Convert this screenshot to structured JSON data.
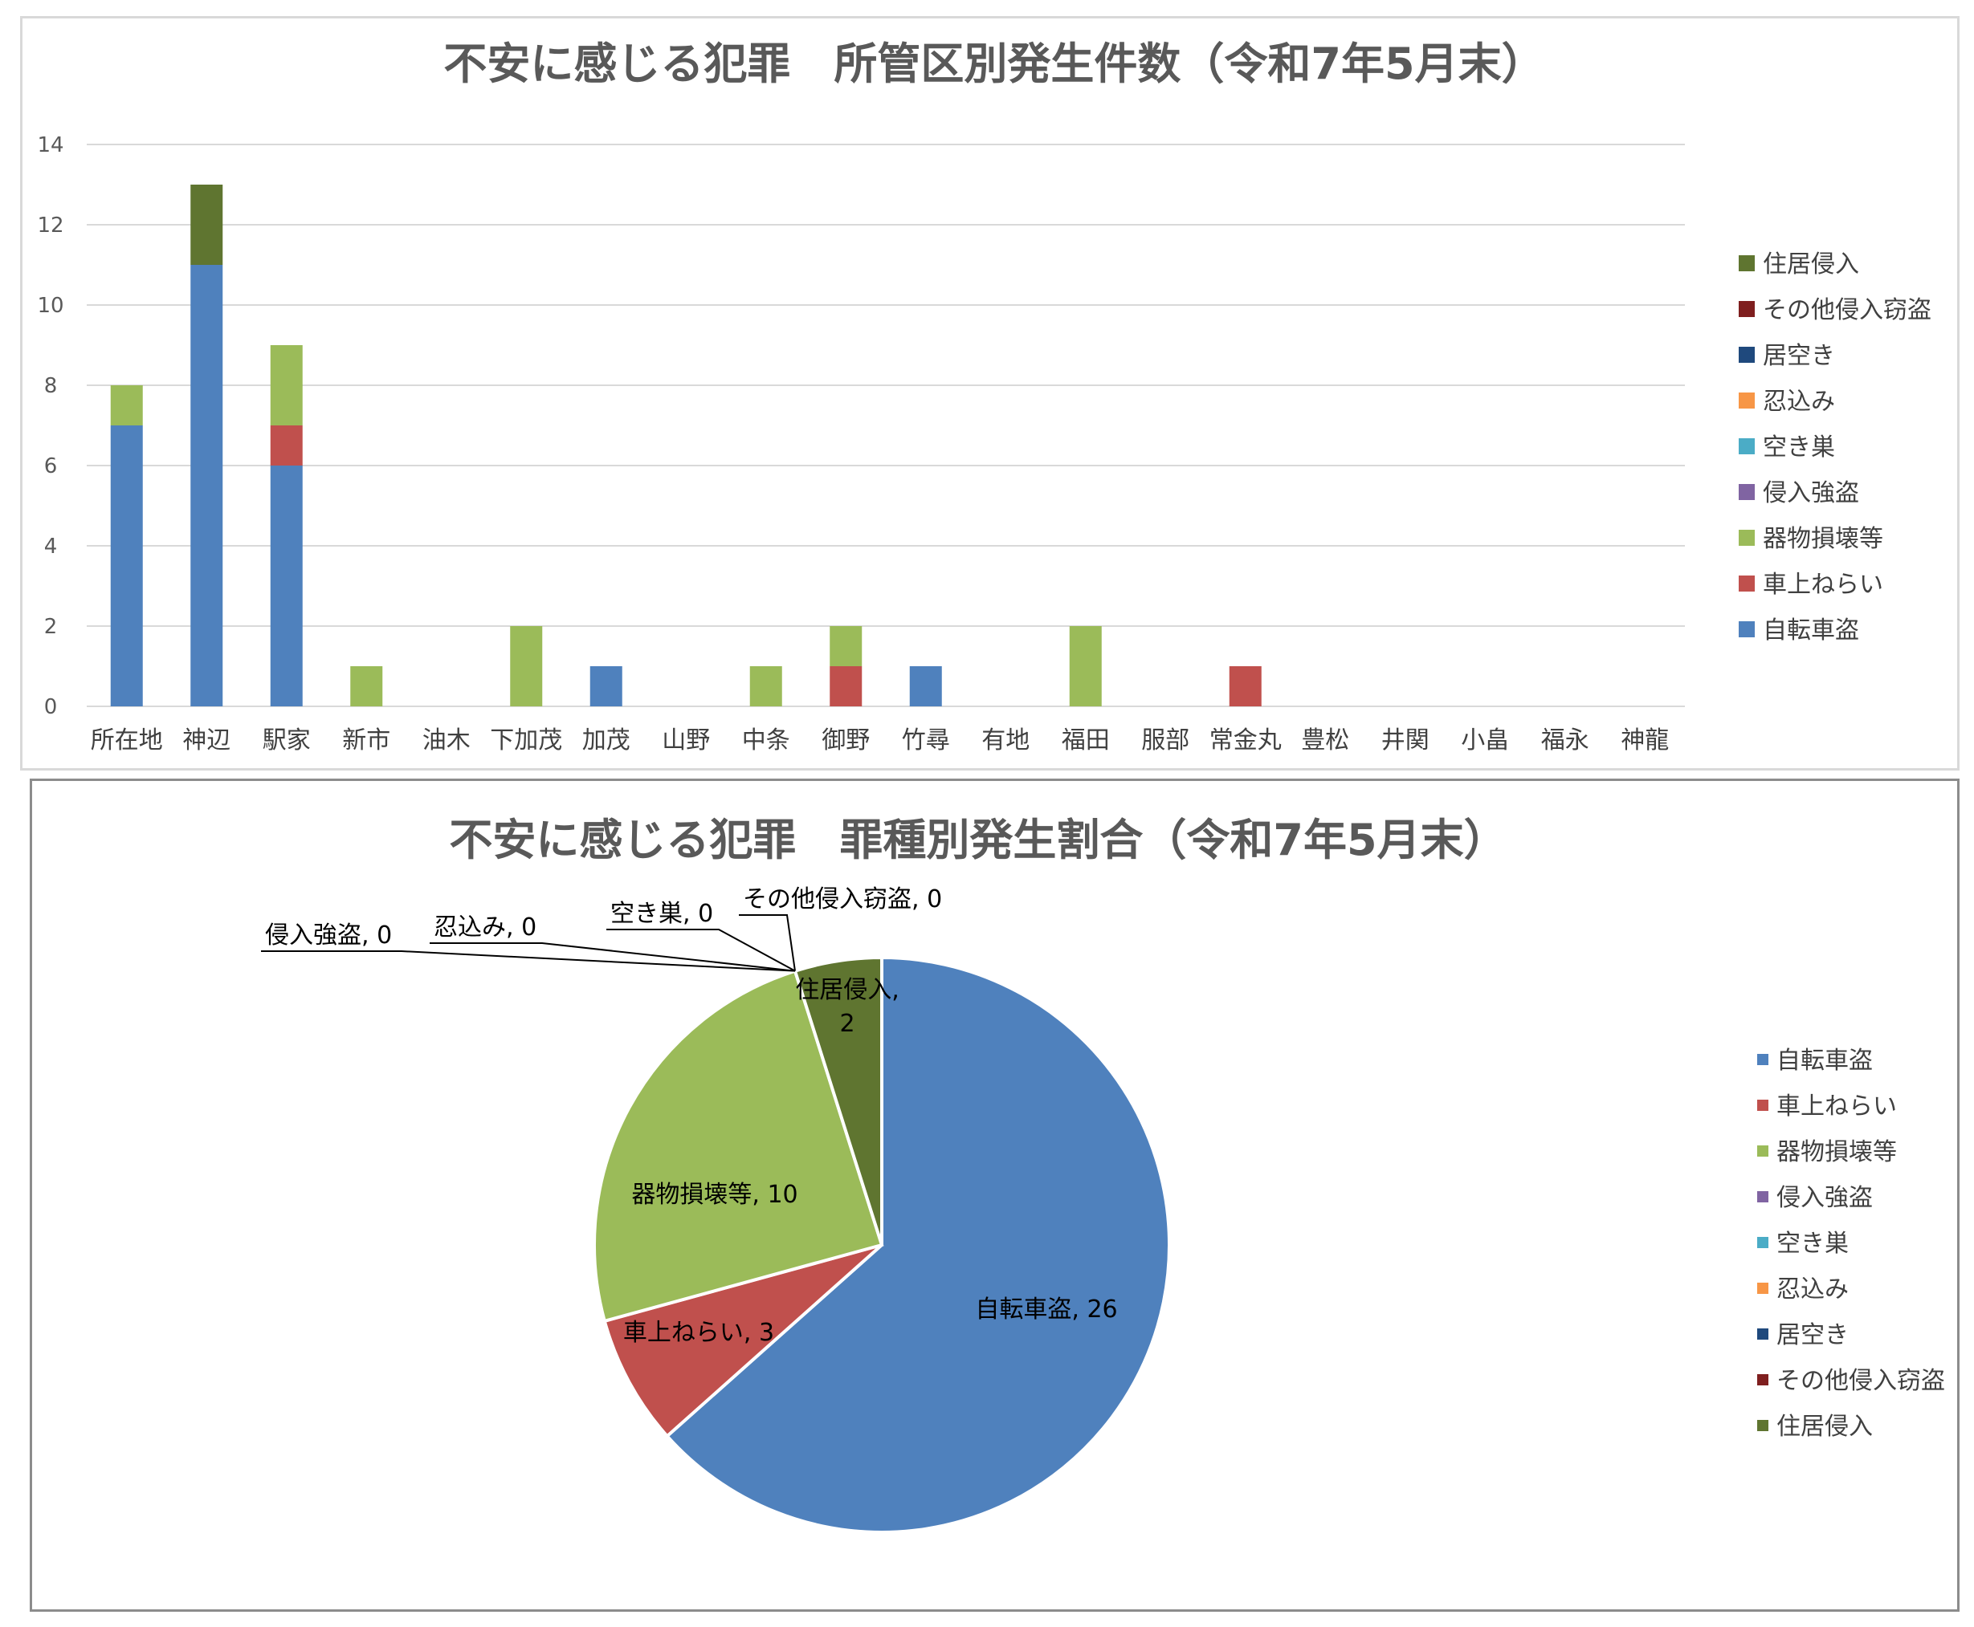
{
  "colors": {
    "自転車盗": "#4f81bd",
    "車上ねらい": "#c0504d",
    "器物損壊等": "#9bbb59",
    "侵入強盗": "#8064a2",
    "空き巣": "#4bacc6",
    "忍込み": "#f79646",
    "居空き": "#1f497d",
    "その他侵入窃盗": "#7f1f1f",
    "住居侵入": "#5f7530"
  },
  "chart_data": [
    {
      "type": "bar",
      "stacked": true,
      "title": "不安に感じる犯罪　所管区別発生件数（令和7年5月末）",
      "xlabel": "",
      "ylabel": "",
      "ylim": [
        0,
        14
      ],
      "yticks": [
        0,
        2,
        4,
        6,
        8,
        10,
        12,
        14
      ],
      "grid": true,
      "legend_position": "right",
      "categories": [
        "所在地",
        "神辺",
        "駅家",
        "新市",
        "油木",
        "下加茂",
        "加茂",
        "山野",
        "中条",
        "御野",
        "竹尋",
        "有地",
        "福田",
        "服部",
        "常金丸",
        "豊松",
        "井関",
        "小畠",
        "福永",
        "神龍"
      ],
      "series": [
        {
          "name": "自転車盗",
          "values": [
            7,
            11,
            6,
            0,
            0,
            0,
            1,
            0,
            0,
            0,
            1,
            0,
            0,
            0,
            0,
            0,
            0,
            0,
            0,
            0
          ]
        },
        {
          "name": "車上ねらい",
          "values": [
            0,
            0,
            1,
            0,
            0,
            0,
            0,
            0,
            0,
            1,
            0,
            0,
            0,
            0,
            1,
            0,
            0,
            0,
            0,
            0
          ]
        },
        {
          "name": "器物損壊等",
          "values": [
            1,
            0,
            2,
            1,
            0,
            2,
            0,
            0,
            1,
            1,
            0,
            0,
            2,
            0,
            0,
            0,
            0,
            0,
            0,
            0
          ]
        },
        {
          "name": "侵入強盗",
          "values": [
            0,
            0,
            0,
            0,
            0,
            0,
            0,
            0,
            0,
            0,
            0,
            0,
            0,
            0,
            0,
            0,
            0,
            0,
            0,
            0
          ]
        },
        {
          "name": "空き巣",
          "values": [
            0,
            0,
            0,
            0,
            0,
            0,
            0,
            0,
            0,
            0,
            0,
            0,
            0,
            0,
            0,
            0,
            0,
            0,
            0,
            0
          ]
        },
        {
          "name": "忍込み",
          "values": [
            0,
            0,
            0,
            0,
            0,
            0,
            0,
            0,
            0,
            0,
            0,
            0,
            0,
            0,
            0,
            0,
            0,
            0,
            0,
            0
          ]
        },
        {
          "name": "居空き",
          "values": [
            0,
            0,
            0,
            0,
            0,
            0,
            0,
            0,
            0,
            0,
            0,
            0,
            0,
            0,
            0,
            0,
            0,
            0,
            0,
            0
          ]
        },
        {
          "name": "その他侵入窃盗",
          "values": [
            0,
            0,
            0,
            0,
            0,
            0,
            0,
            0,
            0,
            0,
            0,
            0,
            0,
            0,
            0,
            0,
            0,
            0,
            0,
            0
          ]
        },
        {
          "name": "住居侵入",
          "values": [
            0,
            2,
            0,
            0,
            0,
            0,
            0,
            0,
            0,
            0,
            0,
            0,
            0,
            0,
            0,
            0,
            0,
            0,
            0,
            0
          ]
        }
      ],
      "legend": [
        "住居侵入",
        "その他侵入窃盗",
        "居空き",
        "忍込み",
        "空き巣",
        "侵入強盗",
        "器物損壊等",
        "車上ねらい",
        "自転車盗"
      ]
    },
    {
      "type": "pie",
      "title": "不安に感じる犯罪　罪種別発生割合（令和7年5月末）",
      "legend_position": "right",
      "slices": [
        {
          "name": "自転車盗",
          "value": 26,
          "label": "自転車盗, 26"
        },
        {
          "name": "車上ねらい",
          "value": 3,
          "label": "車上ねらい, 3"
        },
        {
          "name": "器物損壊等",
          "value": 10,
          "label": "器物損壊等, 10"
        },
        {
          "name": "侵入強盗",
          "value": 0,
          "label": "侵入強盗, 0"
        },
        {
          "name": "空き巣",
          "value": 0,
          "label": "空き巣, 0"
        },
        {
          "name": "忍込み",
          "value": 0,
          "label": "忍込み, 0"
        },
        {
          "name": "居空き",
          "value": 0,
          "label": ""
        },
        {
          "name": "その他侵入窃盗",
          "value": 0,
          "label": "その他侵入窃盗, 0"
        },
        {
          "name": "住居侵入",
          "value": 2,
          "label": "住居侵入,\n2"
        }
      ],
      "legend": [
        "自転車盗",
        "車上ねらい",
        "器物損壊等",
        "侵入強盗",
        "空き巣",
        "忍込み",
        "居空き",
        "その他侵入窃盗",
        "住居侵入"
      ]
    }
  ]
}
